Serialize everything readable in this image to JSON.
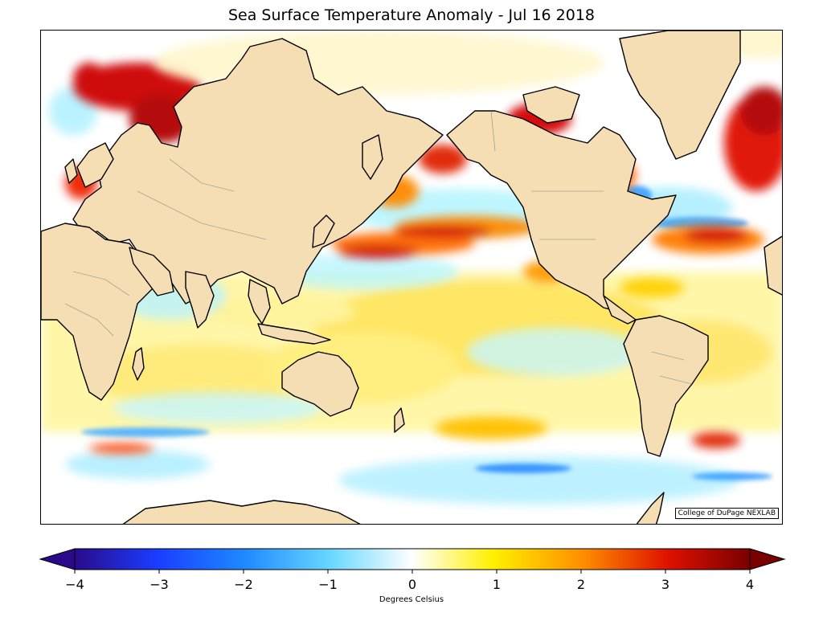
{
  "title": "Sea Surface Temperature Anomaly - Jul 16 2018",
  "credit": "College of DuPage NEXLAB",
  "colorbar": {
    "label": "Degrees Celsius",
    "ticks": [
      "−4",
      "−3",
      "−2",
      "−1",
      "0",
      "1",
      "2",
      "3",
      "4"
    ],
    "min": -4,
    "max": 4,
    "colors": {
      "deep_cold": "#2a0a8a",
      "cold": "#1e6bff",
      "cool": "#7fe6ff",
      "neutral": "#ffffff",
      "warm": "#fff000",
      "hot": "#ff7a00",
      "very_hot": "#cc0000",
      "extreme": "#7a0000"
    }
  },
  "colors": {
    "land": "#f5deb3",
    "coast": "#000000",
    "border": "#888888"
  }
}
